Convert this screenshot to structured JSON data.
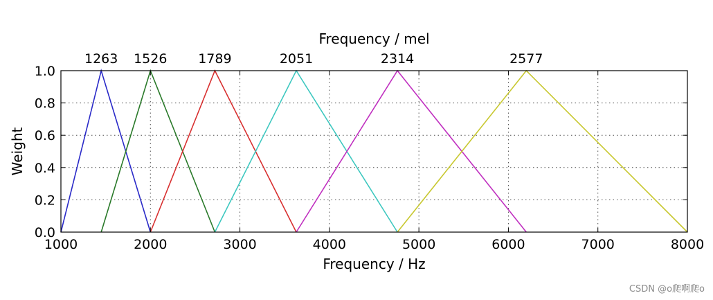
{
  "chart_data": {
    "type": "line",
    "title": "",
    "xlabel": "Frequency / Hz",
    "ylabel": "Weight",
    "top_xlabel": "Frequency / mel",
    "xlim": [
      1000,
      8000
    ],
    "ylim": [
      0.0,
      1.0
    ],
    "grid": true,
    "x_ticks": [
      "1000",
      "2000",
      "3000",
      "4000",
      "5000",
      "6000",
      "7000",
      "8000"
    ],
    "x_tick_values": [
      1000,
      2000,
      3000,
      4000,
      5000,
      6000,
      7000,
      8000
    ],
    "y_ticks": [
      "0.0",
      "0.2",
      "0.4",
      "0.6",
      "0.8",
      "1.0"
    ],
    "y_tick_values": [
      0.0,
      0.2,
      0.4,
      0.6,
      0.8,
      1.0
    ],
    "top_ticks": [
      "1263",
      "1526",
      "1789",
      "2051",
      "2314",
      "2577"
    ],
    "top_tick_hz": [
      1450,
      2000,
      2720,
      3630,
      4760,
      6200
    ],
    "series": [
      {
        "color": "#2a2ac8",
        "x": [
          1000,
          1450,
          2000
        ],
        "y": [
          0,
          1,
          0
        ]
      },
      {
        "color": "#2a7a2a",
        "x": [
          1450,
          2000,
          2720
        ],
        "y": [
          0,
          1,
          0
        ]
      },
      {
        "color": "#d83030",
        "x": [
          2000,
          2720,
          3630
        ],
        "y": [
          0,
          1,
          0
        ]
      },
      {
        "color": "#3ec8c0",
        "x": [
          2720,
          3630,
          4760
        ],
        "y": [
          0,
          1,
          0
        ]
      },
      {
        "color": "#c030c0",
        "x": [
          3630,
          4760,
          6200
        ],
        "y": [
          0,
          1,
          0
        ]
      },
      {
        "color": "#c8c830",
        "x": [
          4760,
          6200,
          8000
        ],
        "y": [
          0,
          1,
          0
        ]
      }
    ]
  },
  "watermark": "CSDN @o爬啊爬o"
}
